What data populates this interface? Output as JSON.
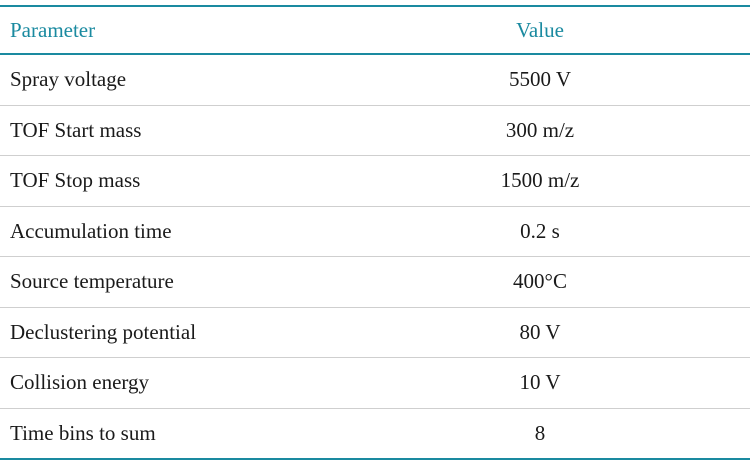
{
  "table": {
    "header": [
      "Parameter",
      "Value"
    ],
    "rows": [
      [
        "Spray voltage",
        "5500 V"
      ],
      [
        "TOF Start mass",
        "300 m/z"
      ],
      [
        "TOF Stop mass",
        "1500 m/z"
      ],
      [
        "Accumulation time",
        "0.2 s"
      ],
      [
        "Source temperature",
        "400°C"
      ],
      [
        "Declustering potential",
        "80 V"
      ],
      [
        "Collision energy",
        "10 V"
      ],
      [
        "Time bins to sum",
        "8"
      ]
    ]
  }
}
